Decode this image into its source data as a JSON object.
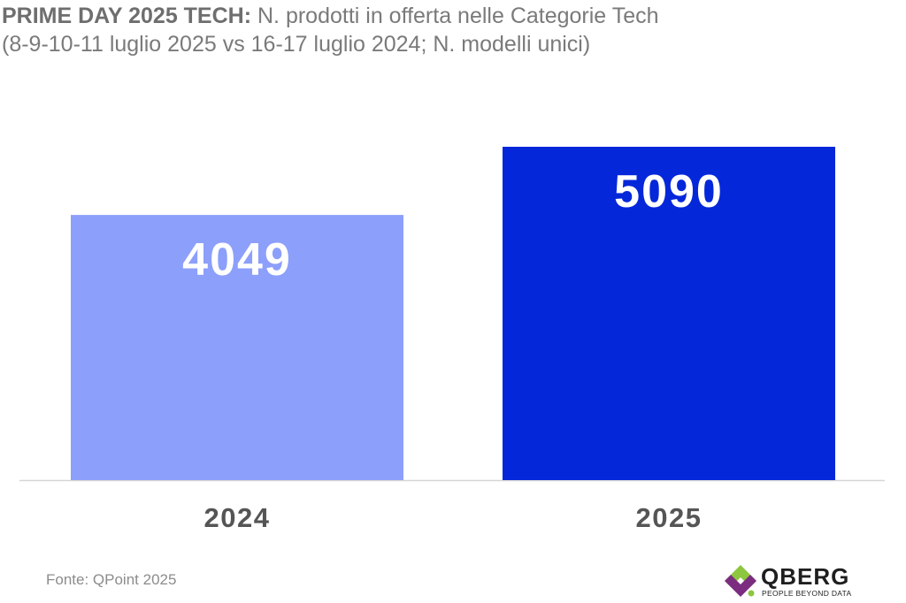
{
  "title": {
    "strong": "PRIME DAY 2025 TECH:",
    "text": "N. prodotti in offerta nelle Categorie Tech",
    "subtitle": "(8-9-10-11 luglio 2025 vs 16-17 luglio 2024; N. modelli unici)"
  },
  "source": "Fonte: QPoint 2025",
  "logo": {
    "name": "QBERG",
    "tagline": "PEOPLE BEYOND DATA",
    "colors": {
      "green": "#8dc63f",
      "purple": "#7b2d7f",
      "dark": "#1f1f1f"
    }
  },
  "chart_data": {
    "type": "bar",
    "title": "",
    "xlabel": "",
    "ylabel": "",
    "categories": [
      "2024",
      "2025"
    ],
    "values": [
      4049,
      5090
    ],
    "colors": [
      "#8c9ffb",
      "#0527da"
    ],
    "ylim": [
      0,
      5090
    ],
    "grid": false,
    "legend": "none"
  }
}
